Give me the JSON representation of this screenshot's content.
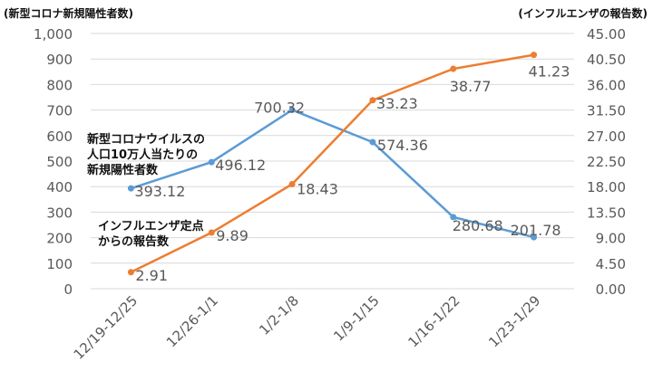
{
  "units": {
    "left": "(新型コロナ新規陽性者数)",
    "right": "(インフルエンザの報告数)"
  },
  "notes": {
    "covid": [
      "新型コロナウイルスの",
      "人口10万人当たりの",
      "新規陽性者数"
    ],
    "flu": [
      "インフルエンザ定点",
      "からの報告数"
    ]
  },
  "colors": {
    "covid": "#5b9bd5",
    "flu": "#ed7d31",
    "grid": "#d9d9d9",
    "text": "#595959"
  },
  "chart_data": {
    "type": "line",
    "categories": [
      "12/19-12/25",
      "12/26-1/1",
      "1/2-1/8",
      "1/9-1/15",
      "1/16-1/22",
      "1/23-1/29"
    ],
    "series": [
      {
        "values": [
          393.12,
          496.12,
          700.32,
          574.36,
          280.68,
          201.78
        ],
        "labels": [
          "393.12",
          "496.12",
          "700.32",
          "574.36",
          "280.68",
          "201.78"
        ],
        "axis": "left"
      },
      {
        "values": [
          2.91,
          9.89,
          18.43,
          33.23,
          38.77,
          41.23
        ],
        "labels": [
          "2.91",
          "9.89",
          "18.43",
          "33.23",
          "38.77",
          "41.23"
        ],
        "axis": "right"
      }
    ],
    "y_left": {
      "min": 0,
      "max": 1000,
      "tick_labels": [
        "0",
        "100",
        "200",
        "300",
        "400",
        "500",
        "600",
        "700",
        "800",
        "900",
        "1,000"
      ]
    },
    "y_right": {
      "min": 0,
      "max": 45,
      "tick_labels": [
        "0.00",
        "4.50",
        "9.00",
        "13.50",
        "18.00",
        "22.50",
        "27.00",
        "31.50",
        "36.00",
        "40.50",
        "45.00"
      ]
    },
    "grid": true,
    "legend": "none"
  }
}
